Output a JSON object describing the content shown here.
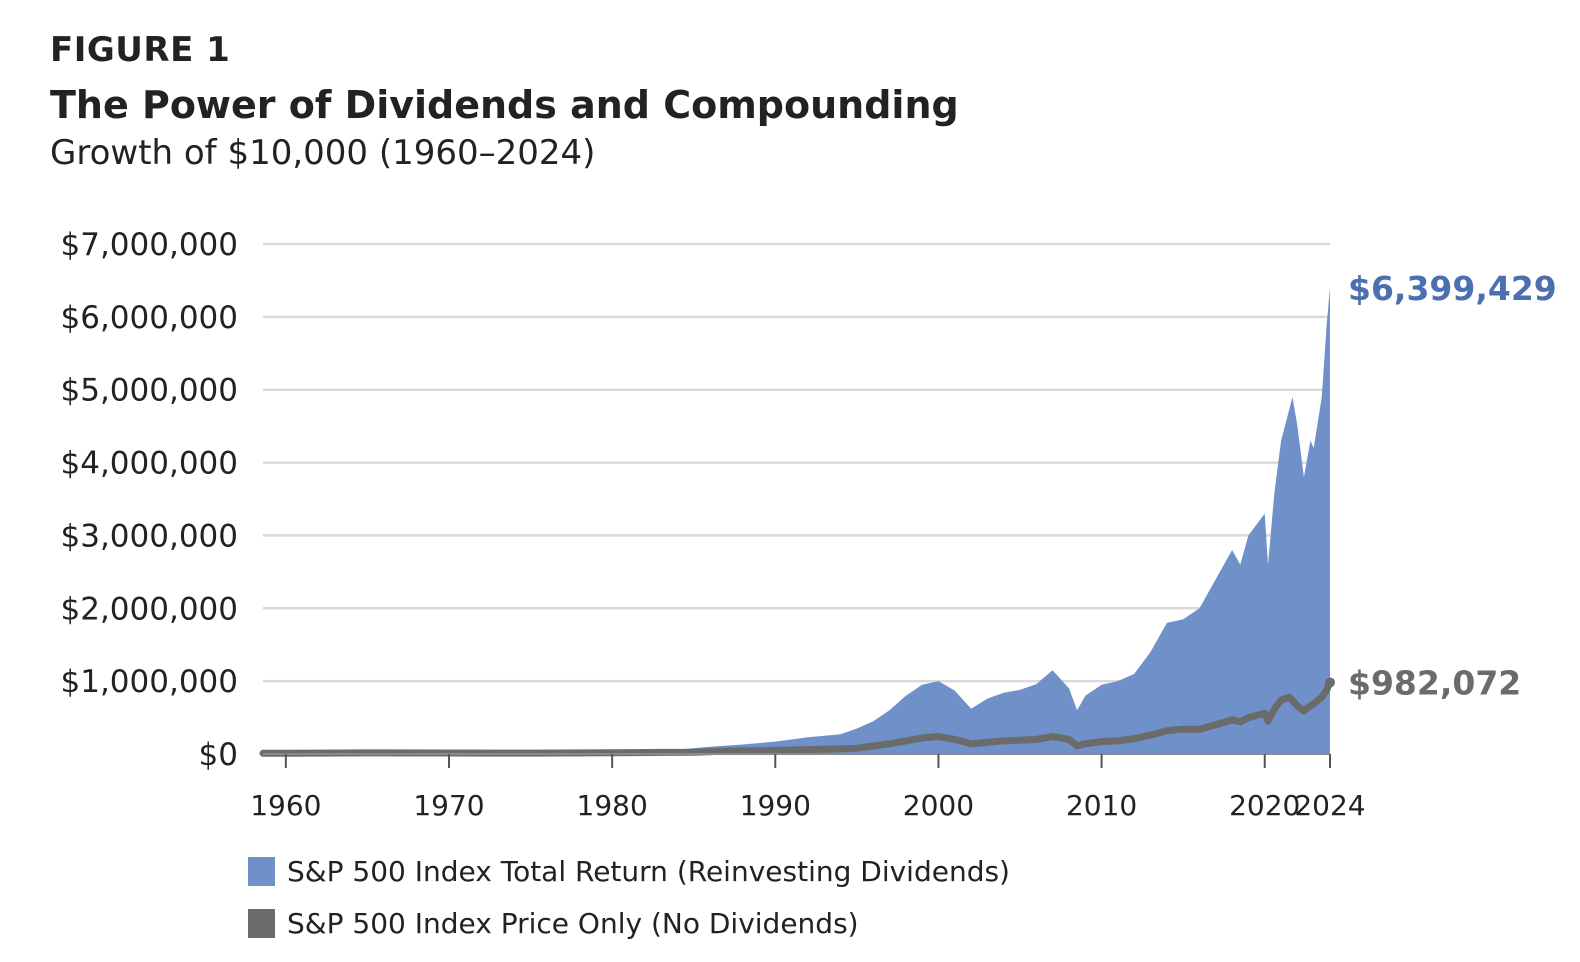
{
  "figure": {
    "label": "FIGURE 1",
    "title": "The Power of Dividends and Compounding",
    "subtitle": "Growth of $10,000 (1960–2024)"
  },
  "colors": {
    "total_return": "#6f90c9",
    "price_only": "#6b6b6b",
    "end_label_total": "#4b6fb0",
    "end_label_price": "#6b6b6b",
    "grid": "#d9d9d9",
    "text": "#222222"
  },
  "chart_data": {
    "type": "area",
    "title": "The Power of Dividends and Compounding",
    "subtitle": "Growth of $10,000 (1960–2024)",
    "xlabel": "",
    "ylabel": "",
    "xlim": [
      1958.6,
      2024
    ],
    "ylim": [
      0,
      7000000
    ],
    "grid": true,
    "legend_position": "bottom-left",
    "x_ticks": [
      1960,
      1970,
      1980,
      1990,
      2000,
      2010,
      2020,
      2024
    ],
    "x_tick_labels": [
      "1960",
      "1970",
      "1980",
      "1990",
      "2000",
      "2010",
      "2020",
      "2024"
    ],
    "y_ticks": [
      0,
      1000000,
      2000000,
      3000000,
      4000000,
      5000000,
      6000000,
      7000000
    ],
    "y_tick_labels": [
      "$0",
      "$1,000,000",
      "$2,000,000",
      "$3,000,000",
      "$4,000,000",
      "$5,000,000",
      "$6,000,000",
      "$7,000,000"
    ],
    "series": [
      {
        "name": "S&P 500 Index Total Return (Reinvesting Dividends)",
        "kind": "area",
        "end_label": "$6,399,429",
        "points": [
          [
            1958.6,
            10000
          ],
          [
            1960,
            10000
          ],
          [
            1965,
            18000
          ],
          [
            1970,
            25000
          ],
          [
            1975,
            30000
          ],
          [
            1980,
            40000
          ],
          [
            1982,
            45000
          ],
          [
            1984,
            60000
          ],
          [
            1986,
            100000
          ],
          [
            1988,
            130000
          ],
          [
            1990,
            170000
          ],
          [
            1992,
            230000
          ],
          [
            1994,
            270000
          ],
          [
            1995,
            350000
          ],
          [
            1996,
            450000
          ],
          [
            1997,
            600000
          ],
          [
            1998,
            800000
          ],
          [
            1999,
            950000
          ],
          [
            2000,
            1000000
          ],
          [
            2001,
            870000
          ],
          [
            2002,
            620000
          ],
          [
            2003,
            760000
          ],
          [
            2004,
            840000
          ],
          [
            2005,
            880000
          ],
          [
            2006,
            960000
          ],
          [
            2007,
            1150000
          ],
          [
            2008,
            900000
          ],
          [
            2008.5,
            600000
          ],
          [
            2009,
            800000
          ],
          [
            2010,
            950000
          ],
          [
            2011,
            1000000
          ],
          [
            2012,
            1100000
          ],
          [
            2013,
            1400000
          ],
          [
            2014,
            1800000
          ],
          [
            2015,
            1850000
          ],
          [
            2016,
            2000000
          ],
          [
            2017,
            2400000
          ],
          [
            2018,
            2800000
          ],
          [
            2018.5,
            2600000
          ],
          [
            2019,
            3000000
          ],
          [
            2020,
            3300000
          ],
          [
            2020.2,
            2600000
          ],
          [
            2020.6,
            3600000
          ],
          [
            2021,
            4300000
          ],
          [
            2021.7,
            4900000
          ],
          [
            2022,
            4500000
          ],
          [
            2022.4,
            3800000
          ],
          [
            2022.8,
            4300000
          ],
          [
            2023,
            4200000
          ],
          [
            2023.5,
            4900000
          ],
          [
            2023.8,
            5900000
          ],
          [
            2024,
            6399429
          ]
        ]
      },
      {
        "name": "S&P 500 Index Price Only (No Dividends)",
        "kind": "line",
        "end_label": "$982,072",
        "points": [
          [
            1958.6,
            10000
          ],
          [
            1960,
            10000
          ],
          [
            1965,
            15000
          ],
          [
            1970,
            14000
          ],
          [
            1975,
            12000
          ],
          [
            1980,
            16000
          ],
          [
            1983,
            22000
          ],
          [
            1985,
            25000
          ],
          [
            1987,
            40000
          ],
          [
            1990,
            50000
          ],
          [
            1992,
            60000
          ],
          [
            1994,
            70000
          ],
          [
            1995,
            80000
          ],
          [
            1996,
            110000
          ],
          [
            1997,
            140000
          ],
          [
            1998,
            180000
          ],
          [
            1999,
            220000
          ],
          [
            2000,
            240000
          ],
          [
            2001,
            200000
          ],
          [
            2002,
            140000
          ],
          [
            2003,
            160000
          ],
          [
            2004,
            180000
          ],
          [
            2005,
            190000
          ],
          [
            2006,
            200000
          ],
          [
            2007,
            240000
          ],
          [
            2008,
            200000
          ],
          [
            2008.5,
            110000
          ],
          [
            2009,
            140000
          ],
          [
            2010,
            170000
          ],
          [
            2011,
            180000
          ],
          [
            2012,
            210000
          ],
          [
            2013,
            260000
          ],
          [
            2014,
            320000
          ],
          [
            2015,
            340000
          ],
          [
            2016,
            340000
          ],
          [
            2017,
            400000
          ],
          [
            2018,
            470000
          ],
          [
            2018.5,
            440000
          ],
          [
            2019,
            500000
          ],
          [
            2020,
            560000
          ],
          [
            2020.2,
            450000
          ],
          [
            2020.6,
            620000
          ],
          [
            2021,
            740000
          ],
          [
            2021.5,
            780000
          ],
          [
            2022,
            660000
          ],
          [
            2022.4,
            590000
          ],
          [
            2022.8,
            660000
          ],
          [
            2023,
            690000
          ],
          [
            2023.5,
            780000
          ],
          [
            2023.8,
            880000
          ],
          [
            2024,
            982072
          ]
        ]
      }
    ]
  }
}
